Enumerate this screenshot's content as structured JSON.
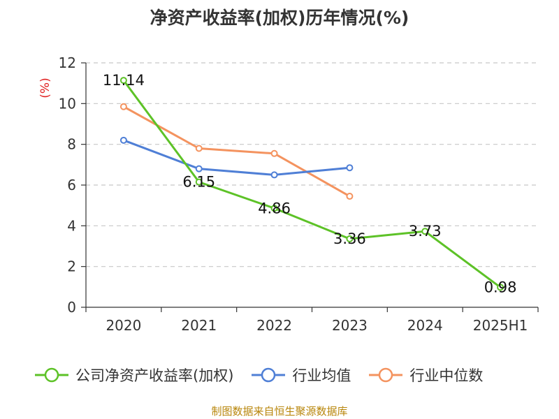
{
  "chart_data": {
    "type": "line",
    "title": "净资产收益率(加权)历年情况(%)",
    "ylabel": "(%)",
    "categories": [
      "2020",
      "2021",
      "2022",
      "2023",
      "2024",
      "2025H1"
    ],
    "ylim": [
      0,
      12
    ],
    "yticks": [
      0,
      2,
      4,
      6,
      8,
      10,
      12
    ],
    "grid": true,
    "legend_position": "bottom",
    "series": [
      {
        "name": "公司净资产收益率(加权)",
        "color": "#5dc227",
        "values": [
          11.14,
          6.15,
          4.86,
          3.36,
          3.73,
          0.98
        ],
        "labels": [
          "11.14",
          "6.15",
          "4.86",
          "3.36",
          "3.73",
          "0.98"
        ]
      },
      {
        "name": "行业均值",
        "color": "#4f7fd6",
        "values": [
          8.2,
          6.8,
          6.5,
          6.85,
          null,
          null
        ]
      },
      {
        "name": "行业中位数",
        "color": "#f4935f",
        "values": [
          9.85,
          7.8,
          7.55,
          5.45,
          null,
          null
        ]
      }
    ]
  },
  "source": "制图数据来自恒生聚源数据库"
}
